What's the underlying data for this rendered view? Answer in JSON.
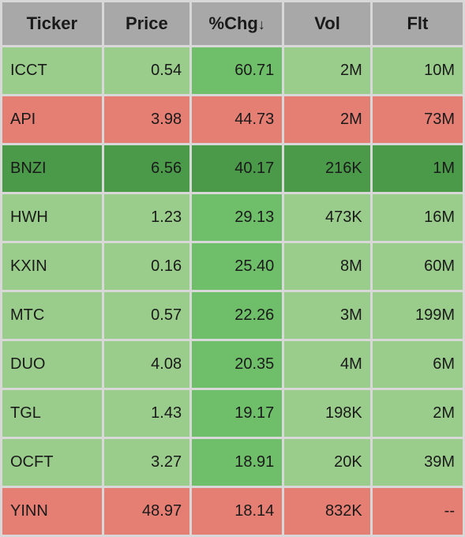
{
  "colors": {
    "header_bg": "#a8a8a8",
    "text": "#1a1a1a",
    "gap": "#d8d8d8",
    "light_green": "#9acd8b",
    "mid_green": "#6fbf6a",
    "dark_green": "#4a9a4a",
    "red": "#e57e73"
  },
  "columns": [
    {
      "label": "Ticker",
      "width": "22%"
    },
    {
      "label": "Price",
      "width": "19%"
    },
    {
      "label": "%Chg",
      "width": "20%",
      "sorted_desc": true
    },
    {
      "label": "Vol",
      "width": "19%"
    },
    {
      "label": "Flt",
      "width": "20%"
    }
  ],
  "sort_arrow": "↓",
  "rows": [
    {
      "ticker": "ICCT",
      "price": "0.54",
      "chg": "60.71",
      "vol": "2M",
      "flt": "10M",
      "bg": {
        "ticker": "light_green",
        "price": "light_green",
        "chg": "mid_green",
        "vol": "light_green",
        "flt": "light_green"
      }
    },
    {
      "ticker": "API",
      "price": "3.98",
      "chg": "44.73",
      "vol": "2M",
      "flt": "73M",
      "bg": {
        "ticker": "red",
        "price": "red",
        "chg": "red",
        "vol": "red",
        "flt": "red"
      }
    },
    {
      "ticker": "BNZI",
      "price": "6.56",
      "chg": "40.17",
      "vol": "216K",
      "flt": "1M",
      "bg": {
        "ticker": "dark_green",
        "price": "dark_green",
        "chg": "dark_green",
        "vol": "dark_green",
        "flt": "dark_green"
      }
    },
    {
      "ticker": "HWH",
      "price": "1.23",
      "chg": "29.13",
      "vol": "473K",
      "flt": "16M",
      "bg": {
        "ticker": "light_green",
        "price": "light_green",
        "chg": "mid_green",
        "vol": "light_green",
        "flt": "light_green"
      }
    },
    {
      "ticker": "KXIN",
      "price": "0.16",
      "chg": "25.40",
      "vol": "8M",
      "flt": "60M",
      "bg": {
        "ticker": "light_green",
        "price": "light_green",
        "chg": "mid_green",
        "vol": "light_green",
        "flt": "light_green"
      }
    },
    {
      "ticker": "MTC",
      "price": "0.57",
      "chg": "22.26",
      "vol": "3M",
      "flt": "199M",
      "bg": {
        "ticker": "light_green",
        "price": "light_green",
        "chg": "mid_green",
        "vol": "light_green",
        "flt": "light_green"
      }
    },
    {
      "ticker": "DUO",
      "price": "4.08",
      "chg": "20.35",
      "vol": "4M",
      "flt": "6M",
      "bg": {
        "ticker": "light_green",
        "price": "light_green",
        "chg": "mid_green",
        "vol": "light_green",
        "flt": "light_green"
      }
    },
    {
      "ticker": "TGL",
      "price": "1.43",
      "chg": "19.17",
      "vol": "198K",
      "flt": "2M",
      "bg": {
        "ticker": "light_green",
        "price": "light_green",
        "chg": "mid_green",
        "vol": "light_green",
        "flt": "light_green"
      }
    },
    {
      "ticker": "OCFT",
      "price": "3.27",
      "chg": "18.91",
      "vol": "20K",
      "flt": "39M",
      "bg": {
        "ticker": "light_green",
        "price": "light_green",
        "chg": "mid_green",
        "vol": "light_green",
        "flt": "light_green"
      }
    },
    {
      "ticker": "YINN",
      "price": "48.97",
      "chg": "18.14",
      "vol": "832K",
      "flt": "--",
      "bg": {
        "ticker": "red",
        "price": "red",
        "chg": "red",
        "vol": "red",
        "flt": "red"
      }
    }
  ]
}
